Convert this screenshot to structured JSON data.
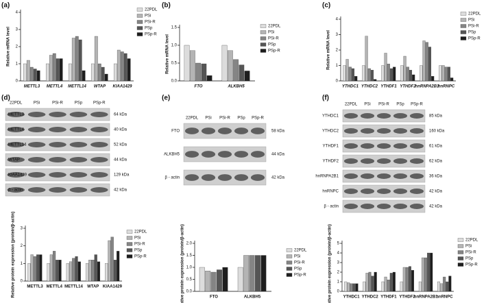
{
  "chart_data": [
    {
      "type": "bar",
      "panel": "(a)",
      "ylabel": "Relative mRNA level",
      "italic_categories": true,
      "categories": [
        "METTL3",
        "METTL4",
        "METTL14",
        "WTAP",
        "KIAA1429"
      ],
      "ylim": [
        0,
        4
      ],
      "yticks": [
        0,
        1,
        2,
        3,
        4
      ],
      "series": [
        {
          "name": "22PDL",
          "color": "#dcdcdc",
          "values": [
            1,
            1,
            1,
            1,
            1
          ]
        },
        {
          "name": "PSi",
          "color": "#b4b4b4",
          "values": [
            1.2,
            1.5,
            2.5,
            2.6,
            1.8
          ]
        },
        {
          "name": "PSi-R",
          "color": "#858585",
          "values": [
            0.8,
            1.6,
            2.6,
            1.0,
            1.7
          ]
        },
        {
          "name": "PSp",
          "color": "#555555",
          "values": [
            0.7,
            1.3,
            2.4,
            0.8,
            1.6
          ]
        },
        {
          "name": "PSp-R",
          "color": "#1e1e1e",
          "values": [
            0.6,
            1.3,
            0.6,
            0.4,
            1.3
          ]
        }
      ]
    },
    {
      "type": "bar",
      "panel": "(b)",
      "ylabel": "Relative mRNA level",
      "italic_categories": true,
      "categories": [
        "FTO",
        "ALKBH5"
      ],
      "ylim": [
        0,
        1.5
      ],
      "yticks": [
        {
          "value": 0,
          "label": "0.0"
        },
        0.5,
        {
          "value": 1,
          "label": "1.0"
        },
        1.5
      ],
      "series": [
        {
          "name": "22PDL",
          "color": "#dcdcdc",
          "values": [
            1,
            1
          ]
        },
        {
          "name": "PSi",
          "color": "#b4b4b4",
          "values": [
            0.85,
            0.85
          ]
        },
        {
          "name": "PSi-R",
          "color": "#858585",
          "values": [
            0.5,
            0.6
          ]
        },
        {
          "name": "PSp",
          "color": "#555555",
          "values": [
            0.48,
            0.45
          ]
        },
        {
          "name": "PSp-R",
          "color": "#1e1e1e",
          "values": [
            0.15,
            0.28
          ]
        }
      ]
    },
    {
      "type": "bar",
      "panel": "(c)",
      "ylabel": "Relative mRNA level",
      "italic_categories": true,
      "categories": [
        "YTHDC1",
        "YTHDC2",
        "YTHDF1",
        "YTHDF2",
        "hnRNPA2B1",
        "hnRNPC"
      ],
      "ylim": [
        0,
        4
      ],
      "yticks": [
        0,
        1,
        2,
        3,
        4
      ],
      "series": [
        {
          "name": "22PDL",
          "color": "#dcdcdc",
          "values": [
            1,
            1,
            1,
            1,
            1,
            1
          ]
        },
        {
          "name": "PSi",
          "color": "#b4b4b4",
          "values": [
            1.4,
            2.9,
            1.8,
            1.6,
            2.6,
            1.0
          ]
        },
        {
          "name": "PSi-R",
          "color": "#858585",
          "values": [
            0.9,
            0.8,
            1.1,
            0.9,
            2.5,
            0.9
          ]
        },
        {
          "name": "PSp",
          "color": "#555555",
          "values": [
            0.8,
            0.7,
            0.8,
            0.7,
            2.2,
            0.9
          ]
        },
        {
          "name": "PSp-R",
          "color": "#1e1e1e",
          "values": [
            0.3,
            0.1,
            0.9,
            0.4,
            0.3,
            0.2
          ]
        }
      ]
    },
    {
      "type": "bar",
      "ylabel": "Relative protein expression (protein/β-actin)",
      "italic_categories": false,
      "categories": [
        "METTL3",
        "METTL4",
        "METTL14",
        "WTAP",
        "KIAA1429"
      ],
      "ylim": [
        0,
        3
      ],
      "yticks": [
        0,
        1,
        2,
        3
      ],
      "series": [
        {
          "name": "22PDL",
          "color": "#dcdcdc",
          "values": [
            1,
            1,
            1,
            1,
            1
          ]
        },
        {
          "name": "PSi",
          "color": "#b4b4b4",
          "values": [
            1.5,
            1.5,
            1.1,
            1.2,
            2.3
          ]
        },
        {
          "name": "PSi-R",
          "color": "#858585",
          "values": [
            1.4,
            1.7,
            1.3,
            1.2,
            2.5
          ]
        },
        {
          "name": "PSp",
          "color": "#555555",
          "values": [
            1.5,
            1.2,
            1.4,
            1.5,
            1.2
          ]
        },
        {
          "name": "PSp-R",
          "color": "#1e1e1e",
          "values": [
            1.5,
            1.2,
            1.1,
            1.1,
            1.7
          ]
        }
      ]
    },
    {
      "type": "bar",
      "ylabel": "Relative protein expression (protein/β-actin)",
      "italic_categories": false,
      "categories": [
        "FTO",
        "ALKBH5"
      ],
      "ylim": [
        0,
        2
      ],
      "yticks": [
        {
          "value": 0,
          "label": "0.0"
        },
        0.5,
        {
          "value": 1,
          "label": "1.0"
        },
        1.5,
        {
          "value": 2,
          "label": "2.0"
        }
      ],
      "series": [
        {
          "name": "22PDL",
          "color": "#dcdcdc",
          "values": [
            1,
            1
          ]
        },
        {
          "name": "PSi",
          "color": "#b4b4b4",
          "values": [
            0.85,
            1.5
          ]
        },
        {
          "name": "PSi-R",
          "color": "#858585",
          "values": [
            0.8,
            1.5
          ]
        },
        {
          "name": "PSp",
          "color": "#555555",
          "values": [
            0.9,
            1.5
          ]
        },
        {
          "name": "PSp-R",
          "color": "#1e1e1e",
          "values": [
            1.0,
            1.5
          ]
        }
      ]
    },
    {
      "type": "bar",
      "ylabel": "Relative protein expression (protein/β-actin)",
      "italic_categories": false,
      "categories": [
        "YTHDC1",
        "YTHDC2",
        "YTHDF1",
        "YTHDF2",
        "hnRNPA2B1",
        "hnRNPC"
      ],
      "ylim": [
        0,
        5
      ],
      "yticks": [
        0,
        1,
        2,
        3,
        4,
        5
      ],
      "series": [
        {
          "name": "22PDL",
          "color": "#dcdcdc",
          "values": [
            1,
            1,
            1,
            1,
            1,
            1
          ]
        },
        {
          "name": "PSi",
          "color": "#b4b4b4",
          "values": [
            0.9,
            1.9,
            1.5,
            2.5,
            3.5,
            0.8
          ]
        },
        {
          "name": "PSi-R",
          "color": "#858585",
          "values": [
            0.8,
            2.0,
            1.2,
            2.5,
            3.5,
            1.5
          ]
        },
        {
          "name": "PSp",
          "color": "#555555",
          "values": [
            0.8,
            1.6,
            1.9,
            2.6,
            4.0,
            1.0
          ]
        },
        {
          "name": "PSp-R",
          "color": "#1e1e1e",
          "values": [
            0.8,
            2.0,
            2.0,
            2.2,
            4.0,
            1.6
          ]
        }
      ]
    }
  ],
  "blots": [
    {
      "panel": "(d)",
      "lanes": [
        "22PDL",
        "PSi",
        "PSi-R",
        "PSp",
        "PSp-R"
      ],
      "rows": [
        {
          "name": "METTL3",
          "size": "64 kDa"
        },
        {
          "name": "METTL4",
          "size": "40 kDa"
        },
        {
          "name": "METTL14",
          "size": "52 kDa"
        },
        {
          "name": "WTAP",
          "size": "44 kDa"
        },
        {
          "name": "KIAA1429",
          "size": "129 kDa"
        },
        {
          "name": "β - actin",
          "size": "42 kDa"
        }
      ]
    },
    {
      "panel": "(e)",
      "lanes": [
        "22PDL",
        "PSi",
        "PSi-R",
        "PSp",
        "PSp-R"
      ],
      "rows": [
        {
          "name": "FTO",
          "size": "58 kDa"
        },
        {
          "name": "ALKBH5",
          "size": "44 kDa"
        },
        {
          "name": "β - actin",
          "size": "42 kDa"
        }
      ]
    },
    {
      "panel": "(f)",
      "lanes": [
        "22PDL",
        "PSi",
        "PSi-R",
        "PSp",
        "PSp-R"
      ],
      "rows": [
        {
          "name": "YTHDC1",
          "size": "85 kDa"
        },
        {
          "name": "YTHDC2",
          "size": "160 kDa"
        },
        {
          "name": "YTHDF1",
          "size": "61 kDa"
        },
        {
          "name": "YTHDF2",
          "size": "62 kDa"
        },
        {
          "name": "hnRNPA2B1",
          "size": "36 kDa"
        },
        {
          "name": "hnRNPC",
          "size": "42 kDa"
        },
        {
          "name": "β - actin",
          "size": "42 kDa"
        }
      ]
    }
  ]
}
